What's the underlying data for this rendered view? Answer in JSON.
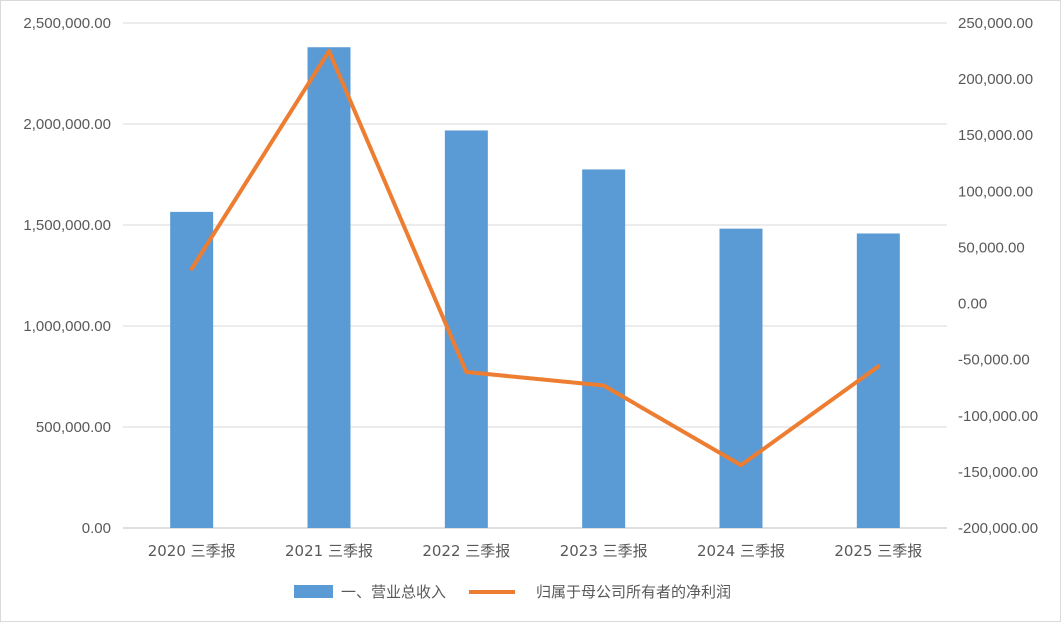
{
  "chart_data": {
    "type": "bar+line",
    "categories": [
      "2020 三季报",
      "2021 三季报",
      "2022 三季报",
      "2023 三季报",
      "2024 三季报",
      "2025 三季报"
    ],
    "series": [
      {
        "name": "一、营业总收入",
        "type": "bar",
        "axis": "left",
        "color": "#5b9bd5",
        "values": [
          1565000,
          2380000,
          1968000,
          1775000,
          1482000,
          1458000
        ]
      },
      {
        "name": "归属于母公司所有者的净利润",
        "type": "line",
        "axis": "right",
        "color": "#ed7d31",
        "values": [
          31000,
          225000,
          -61000,
          -73000,
          -144000,
          -56000
        ]
      }
    ],
    "left_axis": {
      "ylim": [
        0,
        2500000
      ],
      "ticks": [
        0,
        500000,
        1000000,
        1500000,
        2000000,
        2500000
      ],
      "tick_labels": [
        "0.00",
        "500,000.00",
        "1,000,000.00",
        "1,500,000.00",
        "2,000,000.00",
        "2,500,000.00"
      ]
    },
    "right_axis": {
      "ylim": [
        -200000,
        250000
      ],
      "ticks": [
        -200000,
        -150000,
        -100000,
        -50000,
        0,
        50000,
        100000,
        150000,
        200000,
        250000
      ],
      "tick_labels": [
        "-200,000.00",
        "-150,000.00",
        "-100,000.00",
        "-50,000.00",
        "0.00",
        "50,000.00",
        "100,000.00",
        "150,000.00",
        "200,000.00",
        "250,000.00"
      ]
    },
    "grid": true,
    "legend_position": "bottom"
  }
}
